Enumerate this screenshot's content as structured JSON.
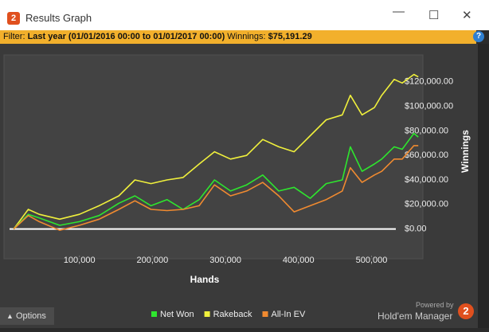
{
  "window": {
    "title": "Results Graph",
    "icon": "2"
  },
  "filter": {
    "label": "Filter:",
    "range": "Last year (01/01/2016 00:00 to 01/01/2017 00:00)",
    "winnings_label": "Winnings:",
    "winnings": "$75,191.29",
    "help": "?"
  },
  "chart_data": {
    "type": "line",
    "x_label": "Hands",
    "y_label": "Winnings",
    "x": [
      10000,
      30000,
      45000,
      73000,
      100000,
      127000,
      154000,
      176000,
      198000,
      220000,
      242000,
      264000,
      285000,
      307000,
      329000,
      351000,
      373000,
      394000,
      416000,
      438000,
      460000,
      471000,
      487000,
      504000,
      514000,
      531000,
      542000,
      558000,
      564000
    ],
    "series": [
      {
        "name": "Net Won",
        "color": "#2ee62e",
        "values": [
          0,
          12000,
          9000,
          3000,
          6000,
          11000,
          21000,
          27000,
          19000,
          24000,
          16000,
          24000,
          40000,
          31000,
          36000,
          44000,
          31000,
          34000,
          25000,
          37000,
          40000,
          67000,
          47000,
          53000,
          57000,
          67000,
          65000,
          78000,
          75000
        ]
      },
      {
        "name": "Rakeback",
        "color": "#f0f03c",
        "values": [
          0,
          16000,
          12000,
          8000,
          12000,
          19000,
          27000,
          40000,
          37000,
          40000,
          42000,
          53000,
          63000,
          57000,
          60000,
          73000,
          67000,
          63000,
          76000,
          89000,
          93000,
          109000,
          93000,
          99000,
          109000,
          122000,
          119000,
          126000,
          124000
        ]
      },
      {
        "name": "All-In EV",
        "color": "#f08a30",
        "values": [
          0,
          11000,
          6000,
          -1000,
          3000,
          8000,
          16000,
          23000,
          16000,
          15000,
          16000,
          19000,
          36000,
          27000,
          31000,
          38000,
          27000,
          14000,
          19000,
          24000,
          31000,
          50000,
          38000,
          44000,
          47000,
          57000,
          57000,
          68000,
          68000
        ]
      }
    ],
    "xlim": [
      0,
      566000
    ],
    "ylim": [
      -21000,
      138000
    ],
    "xticks": [
      {
        "value": 100000,
        "label": "100,000"
      },
      {
        "value": 200000,
        "label": "200,000"
      },
      {
        "value": 300000,
        "label": "300,000"
      },
      {
        "value": 400000,
        "label": "400,000"
      },
      {
        "value": 500000,
        "label": "500,000"
      }
    ],
    "yticks": [
      {
        "value": 0,
        "label": "$0.00"
      },
      {
        "value": 20000,
        "label": "$20,000.00"
      },
      {
        "value": 40000,
        "label": "$40,000.00"
      },
      {
        "value": 60000,
        "label": "$60,000.00"
      },
      {
        "value": 80000,
        "label": "$80,000.00"
      },
      {
        "value": 100000,
        "label": "$100,000.00"
      },
      {
        "value": 120000,
        "label": "$120,000.00"
      }
    ]
  },
  "footer": {
    "options": "Options",
    "powered_by": "Powered by",
    "brand": "Hold'em Manager",
    "brand_badge": "2"
  }
}
